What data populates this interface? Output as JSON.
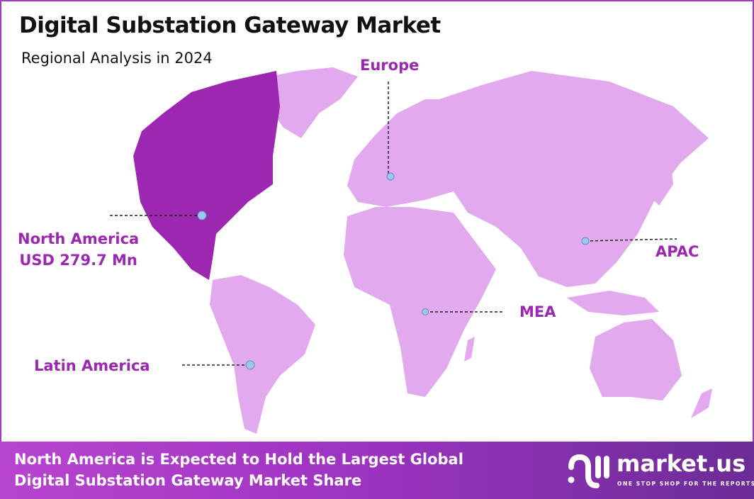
{
  "header": {
    "title": "Digital Substation Gateway Market",
    "subtitle": "Regional Analysis in 2024"
  },
  "regions": [
    {
      "label": "North America",
      "value": "USD 279.7 Mn",
      "highlighted": true
    },
    {
      "label": "Europe"
    },
    {
      "label": "APAC"
    },
    {
      "label": "MEA"
    },
    {
      "label": "Latin America"
    }
  ],
  "colors": {
    "highlight": "#9c27b0",
    "region": "#e2a9ee",
    "label": "#9c27b0",
    "marker": "#9ec5ee",
    "frame": "#a33bbd"
  },
  "footer": {
    "line1": "North America is Expected to Hold the Largest Global",
    "line2": "Digital Substation Gateway Market Share"
  },
  "logo": {
    "name": "market.us",
    "tagline": "ONE STOP SHOP FOR THE REPORTS"
  }
}
